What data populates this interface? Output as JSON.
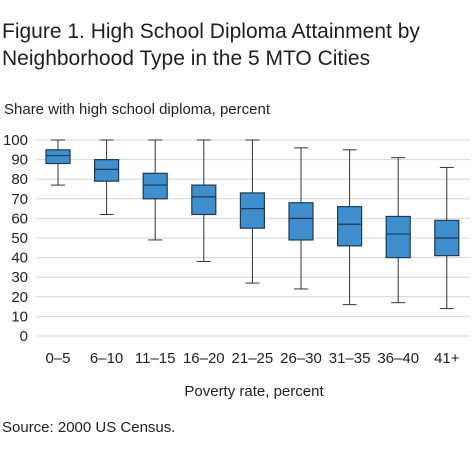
{
  "title_lines": [
    "Figure 1. High School Diploma Attainment by",
    "Neighborhood Type in the 5 MTO Cities"
  ],
  "source": "Source: 2000 US Census.",
  "chart_data": {
    "type": "box",
    "title": "Figure 1. High School Diploma Attainment by Neighborhood Type in the 5 MTO Cities",
    "ylabel": "Share with high school diploma, percent",
    "xlabel": "Poverty rate, percent",
    "ylim": [
      0,
      100
    ],
    "yticks": [
      0,
      10,
      20,
      30,
      40,
      50,
      60,
      70,
      80,
      90,
      100
    ],
    "grid": true,
    "box_color": "#3f8fcf",
    "box_edge_color": "#1c3a52",
    "categories": [
      "0–5",
      "6–10",
      "11–15",
      "16–20",
      "21–25",
      "26–30",
      "31–35",
      "36–40",
      "41+"
    ],
    "boxes": [
      {
        "min": 77,
        "q1": 88,
        "median": 92,
        "q3": 95,
        "max": 100
      },
      {
        "min": 62,
        "q1": 79,
        "median": 85,
        "q3": 90,
        "max": 100
      },
      {
        "min": 49,
        "q1": 70,
        "median": 77,
        "q3": 83,
        "max": 100
      },
      {
        "min": 38,
        "q1": 62,
        "median": 71,
        "q3": 77,
        "max": 100
      },
      {
        "min": 27,
        "q1": 55,
        "median": 65,
        "q3": 73,
        "max": 100
      },
      {
        "min": 24,
        "q1": 49,
        "median": 60,
        "q3": 68,
        "max": 96
      },
      {
        "min": 16,
        "q1": 46,
        "median": 57,
        "q3": 66,
        "max": 95
      },
      {
        "min": 17,
        "q1": 40,
        "median": 52,
        "q3": 61,
        "max": 91
      },
      {
        "min": 14,
        "q1": 41,
        "median": 50,
        "q3": 59,
        "max": 86
      }
    ]
  }
}
